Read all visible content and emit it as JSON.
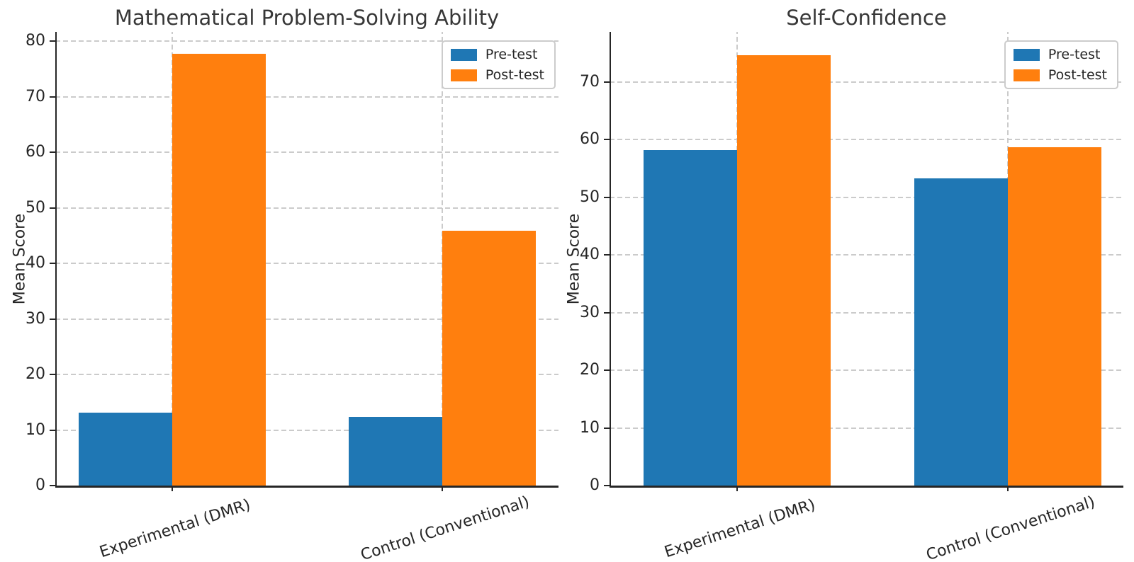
{
  "figure": {
    "background": "#ffffff",
    "text_color": "#262626",
    "grid_color": "#cbcbcb"
  },
  "chart_data": [
    {
      "type": "bar",
      "title": "Mathematical Problem-Solving Ability",
      "xlabel": "",
      "ylabel": "Mean Score",
      "categories": [
        "Experimental (DMR)",
        "Control (Conventional)"
      ],
      "series": [
        {
          "name": "Pre-test",
          "color": "#1f77b4",
          "values": [
            13.1,
            12.3
          ]
        },
        {
          "name": "Post-test",
          "color": "#ff7f0e",
          "values": [
            77.7,
            45.9
          ]
        }
      ],
      "yticks": [
        0,
        10,
        20,
        30,
        40,
        50,
        60,
        70,
        80
      ],
      "ylim": [
        0,
        81.7
      ],
      "grid": true,
      "legend_position": "upper right"
    },
    {
      "type": "bar",
      "title": "Self-Confidence",
      "xlabel": "",
      "ylabel": "Mean Score",
      "categories": [
        "Experimental (DMR)",
        "Control (Conventional)"
      ],
      "series": [
        {
          "name": "Pre-test",
          "color": "#1f77b4",
          "values": [
            58.2,
            53.3
          ]
        },
        {
          "name": "Post-test",
          "color": "#ff7f0e",
          "values": [
            74.7,
            58.7
          ]
        }
      ],
      "yticks": [
        0,
        10,
        20,
        30,
        40,
        50,
        60,
        70
      ],
      "ylim": [
        0,
        78.7
      ],
      "grid": true,
      "legend_position": "upper right"
    }
  ]
}
